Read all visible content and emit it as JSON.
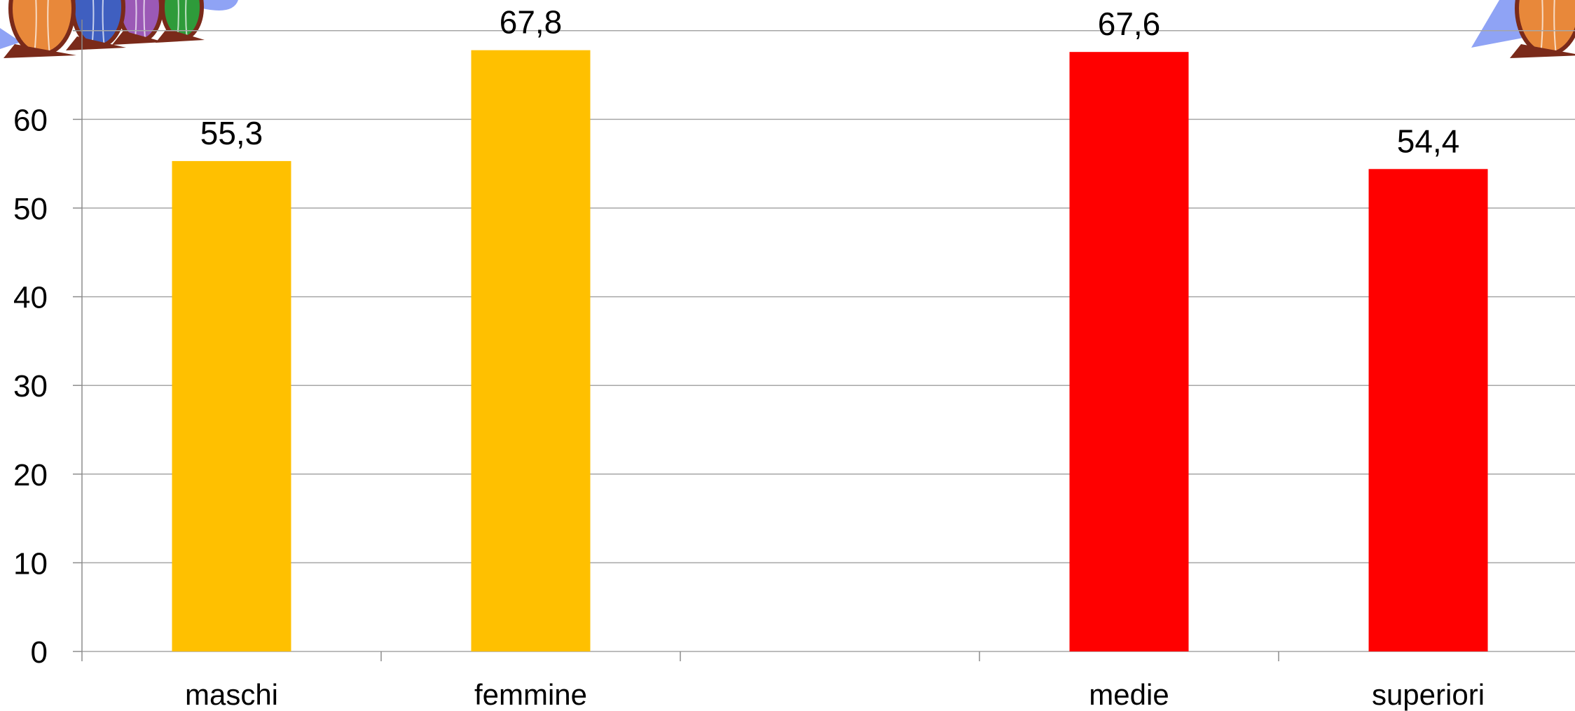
{
  "chart_data": {
    "type": "bar",
    "categories": [
      "maschi",
      "femmine",
      "",
      "medie",
      "superiori"
    ],
    "values": [
      55.3,
      67.8,
      null,
      67.6,
      54.4
    ],
    "data_labels": [
      "55,3",
      "67,8",
      "",
      "67,6",
      "54,4"
    ],
    "bar_colors": [
      "#FFC000",
      "#FFC000",
      null,
      "#FF0000",
      "#FF0000"
    ],
    "ylim": [
      0,
      70
    ],
    "yticks": [
      0,
      10,
      20,
      30,
      40,
      50,
      60
    ],
    "grid": true,
    "title": "",
    "xlabel": "",
    "ylabel": ""
  },
  "decorations": {
    "balloon_colors": [
      "#E8883A",
      "#3F5FC0",
      "#9B59B6",
      "#2E9B3A",
      "#8FA3F5"
    ],
    "balloon_icon": "hot-air-balloon-icon"
  }
}
